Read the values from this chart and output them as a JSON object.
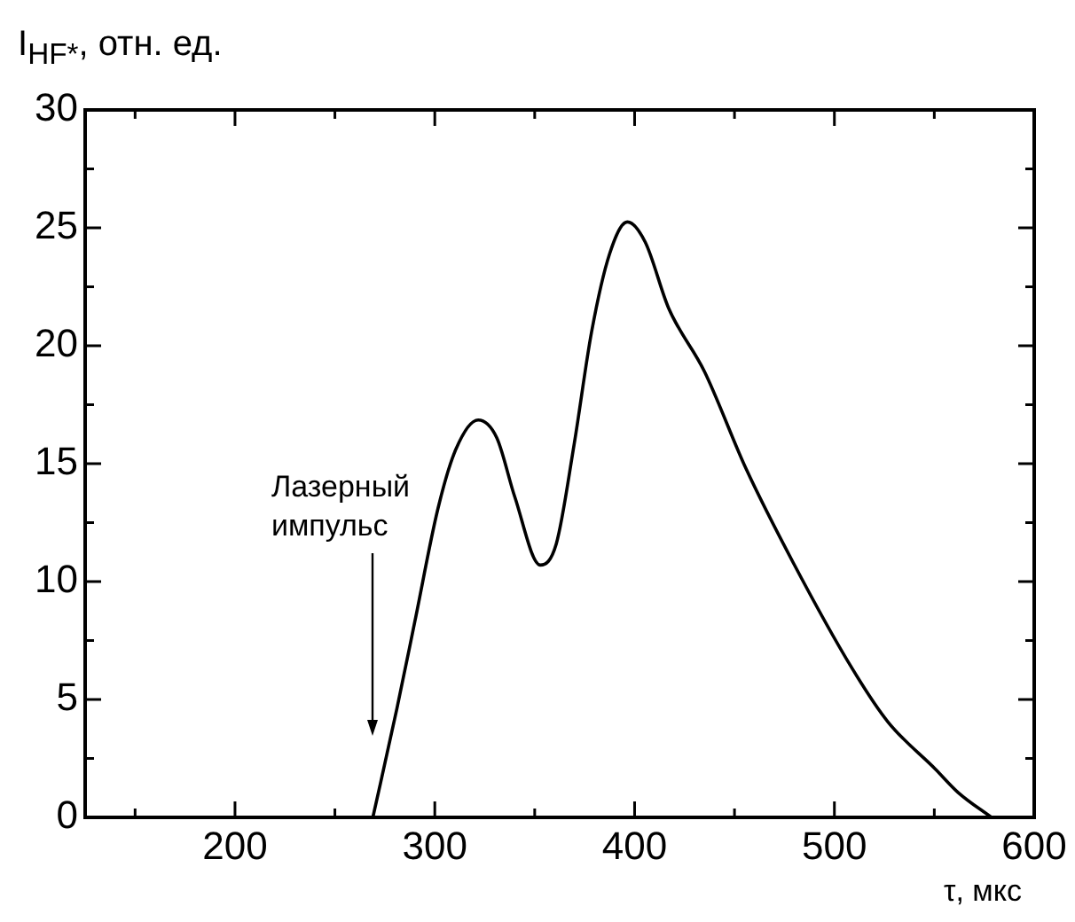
{
  "chart_data": {
    "type": "line",
    "xlabel": "τ,  мкс",
    "ylabel": "I$_{HF*}$, отн. ед.",
    "x": [
      269,
      281,
      290,
      301.6,
      310.5,
      321.7,
      331,
      340,
      352.8,
      360.8,
      369.7,
      378.5,
      387.5,
      396.4,
      405.3,
      417,
      435,
      455.7,
      479.4,
      509,
      526.8,
      550.5,
      562,
      578.6
    ],
    "series": [
      {
        "color": "#000000",
        "values": [
          0,
          4.6,
          8.3,
          13.1,
          15.6,
          16.85,
          16.1,
          13.6,
          10.7,
          11.6,
          15.8,
          20.6,
          23.9,
          25.25,
          24.4,
          21.6,
          18.9,
          14.8,
          10.8,
          6.3,
          4.05,
          2.05,
          1.05,
          0
        ]
      }
    ],
    "xlim": [
      125,
      600
    ],
    "xticks": [
      {
        "value": 150,
        "label": null
      },
      200,
      {
        "value": 250,
        "label": null
      },
      300,
      {
        "value": 350,
        "label": null
      },
      400,
      {
        "value": 450,
        "label": null
      },
      500,
      {
        "value": 550,
        "label": null
      },
      600
    ],
    "ylim": [
      0,
      30
    ],
    "yticks": [
      0,
      {
        "value": 2.5,
        "label": null
      },
      5,
      {
        "value": 7.5,
        "label": null
      },
      10,
      {
        "value": 12.5,
        "label": null
      },
      15,
      {
        "value": 17.5,
        "label": null
      },
      20,
      {
        "value": 22.5,
        "label": null
      },
      25,
      {
        "value": 27.5,
        "label": null
      },
      30
    ],
    "annotations": [
      "Лазерный импульс"
    ],
    "grid": false,
    "legend": false,
    "marker": "none",
    "line_style": "solid"
  }
}
